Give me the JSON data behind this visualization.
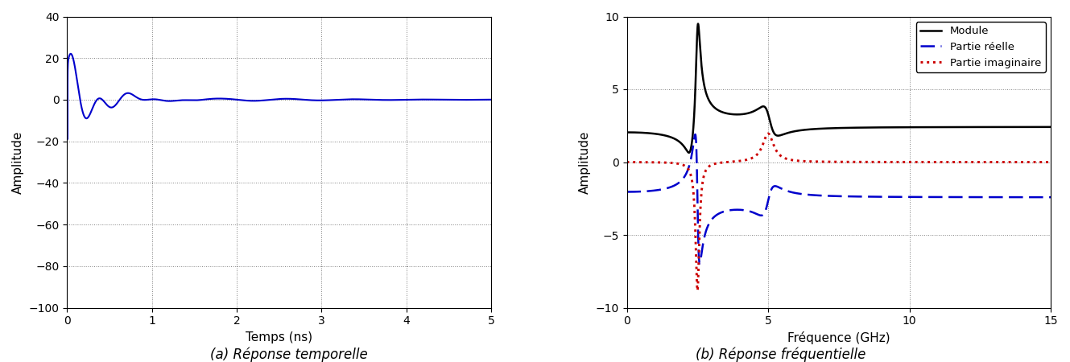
{
  "fig_width": 13.29,
  "fig_height": 4.5,
  "dpi": 100,
  "subplot_a": {
    "xlim": [
      0,
      5
    ],
    "ylim": [
      -100,
      40
    ],
    "xlabel": "Temps (ns)",
    "ylabel": "Amplitude",
    "caption": "(a) Réponse temporelle",
    "yticks": [
      -100,
      -80,
      -60,
      -40,
      -20,
      0,
      20,
      40
    ],
    "xticks": [
      0,
      1,
      2,
      3,
      4,
      5
    ],
    "line_color": "#0000cc",
    "line_width": 1.5
  },
  "subplot_b": {
    "xlim": [
      0,
      15
    ],
    "ylim": [
      -10,
      10
    ],
    "xlabel": "Fréquence (GHz)",
    "ylabel": "Amplitude",
    "caption": "(b) Réponse fréquentielle",
    "yticks": [
      -10,
      -5,
      0,
      5,
      10
    ],
    "xticks": [
      0,
      5,
      10,
      15
    ],
    "legend": [
      "Module",
      "Partie réelle",
      "Partie imaginaire"
    ],
    "legend_colors": [
      "#000000",
      "#0000cc",
      "#cc0000"
    ],
    "legend_styles": [
      "-",
      "--",
      ":"
    ],
    "line_width": 1.8
  }
}
